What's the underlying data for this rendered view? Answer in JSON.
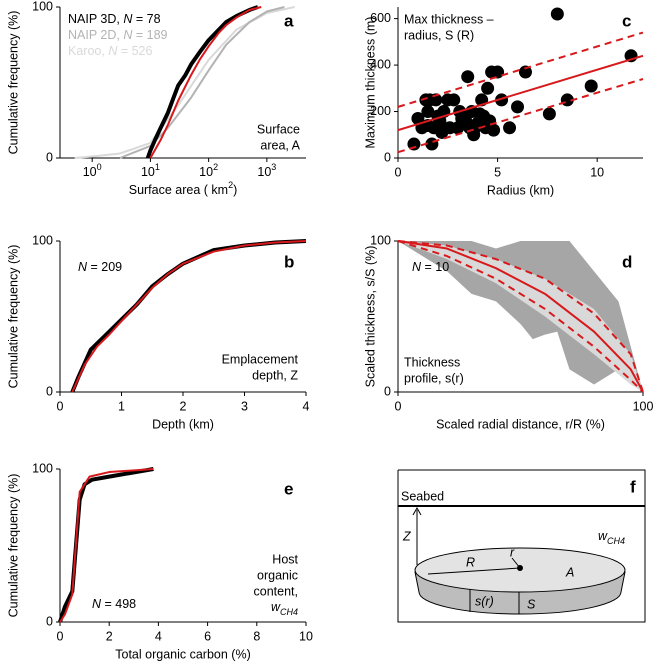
{
  "chart_data": [
    {
      "type": "line",
      "panel": "a",
      "xlog": true,
      "ylabel": "Cumulative frequency (%)",
      "xlabel": [
        {
          "text": "Surface area ( km"
        },
        {
          "text": "2",
          "style": "sup"
        },
        {
          "text": ")"
        }
      ],
      "xlim": [
        0.28,
        4700
      ],
      "ylim": [
        0,
        100
      ],
      "xticks": [
        {
          "value": 1,
          "label": [
            {
              "text": "10"
            },
            {
              "text": "0",
              "style": "sup"
            }
          ]
        },
        {
          "value": 10,
          "label": [
            {
              "text": "10"
            },
            {
              "text": "1",
              "style": "sup"
            }
          ]
        },
        {
          "value": 100,
          "label": [
            {
              "text": "10"
            },
            {
              "text": "2",
              "style": "sup"
            }
          ]
        },
        {
          "value": 1000,
          "label": [
            {
              "text": "10"
            },
            {
              "text": "3",
              "style": "sup"
            }
          ]
        }
      ],
      "yticks": [
        0,
        100
      ],
      "series": [
        {
          "name": [
            {
              "text": "Karoo, "
            },
            {
              "text": "N",
              "style": "italic"
            },
            {
              "text": " = 526"
            }
          ],
          "color": "#d9d9d9",
          "kind": "line",
          "x": [
            0.5,
            1,
            3,
            10,
            30,
            100,
            300,
            1000,
            3000
          ],
          "values": [
            0,
            1,
            3,
            10,
            35,
            65,
            85,
            96,
            100
          ]
        },
        {
          "name": [
            {
              "text": "NAIP 2D, "
            },
            {
              "text": "N",
              "style": "italic"
            },
            {
              "text": " = 189"
            }
          ],
          "color": "#b3b3b3",
          "kind": "line",
          "x": [
            3,
            10,
            20,
            50,
            100,
            200,
            500,
            1000,
            2000
          ],
          "values": [
            0,
            8,
            20,
            40,
            58,
            75,
            90,
            97,
            100
          ]
        },
        {
          "name": [
            {
              "text": "NAIP 3D, "
            },
            {
              "text": "N",
              "style": "italic"
            },
            {
              "text": " = 78"
            }
          ],
          "color": "#000000",
          "kind": "thick",
          "x": [
            9,
            10,
            12,
            15,
            20,
            25,
            30,
            40,
            50,
            70,
            100,
            150,
            200,
            300,
            500,
            700
          ],
          "values": [
            0,
            5,
            12,
            20,
            30,
            40,
            48,
            55,
            62,
            70,
            78,
            85,
            90,
            94,
            98,
            100
          ]
        },
        {
          "color": "#d7191c",
          "kind": "line",
          "x": [
            10,
            15,
            20,
            30,
            50,
            70,
            100,
            150,
            200,
            300,
            500,
            800
          ],
          "values": [
            0,
            12,
            22,
            38,
            55,
            65,
            74,
            83,
            88,
            93,
            98,
            100
          ]
        }
      ],
      "annotations": [
        [
          "Surface",
          "area, A"
        ]
      ]
    },
    {
      "type": "scatter",
      "panel": "c",
      "ylabel": "Maximum thickness (m)",
      "xlabel": "Radius (km)",
      "xlim": [
        0,
        12.3
      ],
      "ylim": [
        0,
        650
      ],
      "xticks": [
        0,
        5,
        10
      ],
      "yticks": [
        0,
        200,
        400,
        600
      ],
      "series": [
        {
          "color": "#000000",
          "kind": "scatter",
          "x": [
            0.8,
            1.0,
            1.2,
            1.4,
            1.5,
            1.6,
            1.7,
            1.8,
            1.9,
            2.0,
            2.1,
            2.3,
            2.5,
            2.6,
            2.8,
            3.0,
            3.1,
            3.2,
            3.4,
            3.5,
            3.6,
            3.7,
            3.8,
            4.0,
            4.2,
            4.3,
            4.4,
            4.5,
            4.6,
            4.7,
            4.8,
            5.0,
            5.2,
            5.6,
            6.0,
            6.4,
            7.6,
            8.0,
            8.5,
            9.7,
            11.7,
            3.8,
            2.2,
            1.5,
            4.1
          ],
          "values": [
            60,
            170,
            130,
            250,
            200,
            250,
            60,
            130,
            250,
            180,
            160,
            200,
            250,
            130,
            250,
            130,
            200,
            170,
            160,
            350,
            130,
            200,
            120,
            150,
            250,
            180,
            130,
            300,
            160,
            370,
            120,
            370,
            250,
            130,
            220,
            370,
            190,
            620,
            250,
            310,
            440,
            100,
            110,
            140,
            190
          ]
        },
        {
          "color": "#d7191c",
          "kind": "line",
          "x": [
            0,
            12.3
          ],
          "values": [
            120,
            440
          ]
        },
        {
          "color": "#d7191c",
          "kind": "dashed",
          "x": [
            0,
            12.3
          ],
          "values": [
            220,
            540
          ]
        },
        {
          "color": "#d7191c",
          "kind": "dashed",
          "x": [
            0,
            12.3
          ],
          "values": [
            25,
            340
          ]
        }
      ],
      "annotations": [
        [
          "Max thickness –",
          "radius, S (R)"
        ]
      ]
    },
    {
      "type": "line",
      "panel": "b",
      "ylabel": "Cumulative frequency (%)",
      "xlabel": "Depth (km)",
      "xlim": [
        0,
        4
      ],
      "ylim": [
        0,
        100
      ],
      "xticks": [
        0,
        1,
        2,
        3,
        4
      ],
      "yticks": [
        0,
        100
      ],
      "series": [
        {
          "color": "#000000",
          "kind": "thick",
          "x": [
            0.2,
            0.3,
            0.5,
            0.75,
            1,
            1.25,
            1.5,
            1.75,
            2,
            2.5,
            3,
            3.5,
            4
          ],
          "values": [
            0,
            10,
            28,
            38,
            48,
            58,
            70,
            78,
            85,
            94,
            97,
            99,
            100
          ]
        },
        {
          "color": "#d7191c",
          "kind": "line",
          "x": [
            0.2,
            0.4,
            0.6,
            0.8,
            1,
            1.25,
            1.5,
            1.75,
            2,
            2.5,
            3,
            3.5,
            4
          ],
          "values": [
            0,
            18,
            30,
            38,
            47,
            58,
            69,
            78,
            85,
            93,
            97,
            99,
            100
          ]
        }
      ],
      "annotations": [
        [
          [
            {
              "text": "N",
              "style": "italic"
            },
            {
              "text": " = 209"
            }
          ]
        ],
        [
          "Emplacement",
          "depth, Z"
        ]
      ]
    },
    {
      "type": "line",
      "panel": "d",
      "ylabel": "Scaled thickness, s/S (%)",
      "xlabel": "Scaled radial distance, r/R (%)",
      "xlim": [
        0,
        100
      ],
      "ylim": [
        0,
        100
      ],
      "xticks": [
        0,
        100
      ],
      "yticks": [
        0,
        100
      ],
      "series": [
        {
          "color": "#a6a6a6",
          "kind": "area",
          "x": [
            0,
            20,
            30,
            40,
            50,
            55,
            60,
            65,
            70,
            80,
            90,
            100
          ],
          "values": [
            100,
            100,
            100,
            95,
            100,
            100,
            100,
            100,
            100,
            80,
            60,
            0
          ],
          "lower": [
            100,
            80,
            65,
            60,
            45,
            35,
            38,
            40,
            15,
            5,
            15,
            0
          ]
        },
        {
          "color": "#d9d9d9",
          "kind": "area",
          "x": [
            0,
            20,
            40,
            60,
            80,
            95,
            100
          ],
          "values": [
            100,
            97,
            88,
            75,
            55,
            25,
            0
          ],
          "lower": [
            100,
            88,
            72,
            50,
            25,
            5,
            0
          ]
        },
        {
          "color": "#d7191c",
          "kind": "line",
          "x": [
            0,
            20,
            40,
            60,
            80,
            95,
            100
          ],
          "values": [
            100,
            95,
            82,
            65,
            40,
            15,
            0
          ]
        },
        {
          "color": "#d7191c",
          "kind": "dashed",
          "x": [
            0,
            20,
            40,
            60,
            80,
            95,
            100
          ],
          "values": [
            100,
            97,
            88,
            75,
            52,
            25,
            0
          ]
        },
        {
          "color": "#d7191c",
          "kind": "dashed",
          "x": [
            0,
            20,
            40,
            60,
            80,
            95,
            100
          ],
          "values": [
            100,
            90,
            75,
            55,
            30,
            8,
            0
          ]
        }
      ],
      "annotations": [
        [
          [
            {
              "text": "N",
              "style": "italic"
            },
            {
              "text": " = 10"
            }
          ]
        ],
        [
          "Thickness",
          "profile, s(r)"
        ]
      ]
    },
    {
      "type": "line",
      "panel": "e",
      "ylabel": "Cumulative frequency (%)",
      "xlabel": "Total organic carbon (%)",
      "xlim": [
        0,
        10
      ],
      "ylim": [
        0,
        100
      ],
      "xticks": [
        0,
        2,
        4,
        6,
        8,
        10
      ],
      "yticks": [
        0,
        100
      ],
      "series": [
        {
          "color": "#000000",
          "kind": "thick",
          "x": [
            0,
            0.2,
            0.5,
            0.8,
            1.0,
            1.3,
            2,
            3.8
          ],
          "values": [
            0,
            10,
            20,
            80,
            90,
            93,
            95,
            100
          ]
        },
        {
          "color": "#d7191c",
          "kind": "line",
          "x": [
            0,
            0.2,
            0.5,
            0.8,
            1.2,
            2,
            3.8
          ],
          "values": [
            0,
            5,
            18,
            85,
            95,
            98,
            100
          ]
        }
      ],
      "annotations": [
        [
          [
            {
              "text": "N",
              "style": "italic"
            },
            {
              "text": " = 498"
            }
          ]
        ],
        [
          "Host",
          "organic",
          "content,",
          [
            {
              "text": "w",
              "style": "italic"
            },
            {
              "text": "CH4",
              "style": "sub"
            }
          ]
        ]
      ]
    }
  ],
  "diagram": {
    "panel": "f",
    "seabed": "Seabed",
    "depth": "Z",
    "radius_big": "R",
    "radius_small": "r",
    "area": "A",
    "profile": "s(r)",
    "thickness": "S",
    "content": [
      {
        "text": "w",
        "style": "italic"
      },
      {
        "text": "CH4",
        "style": "sub"
      }
    ]
  }
}
